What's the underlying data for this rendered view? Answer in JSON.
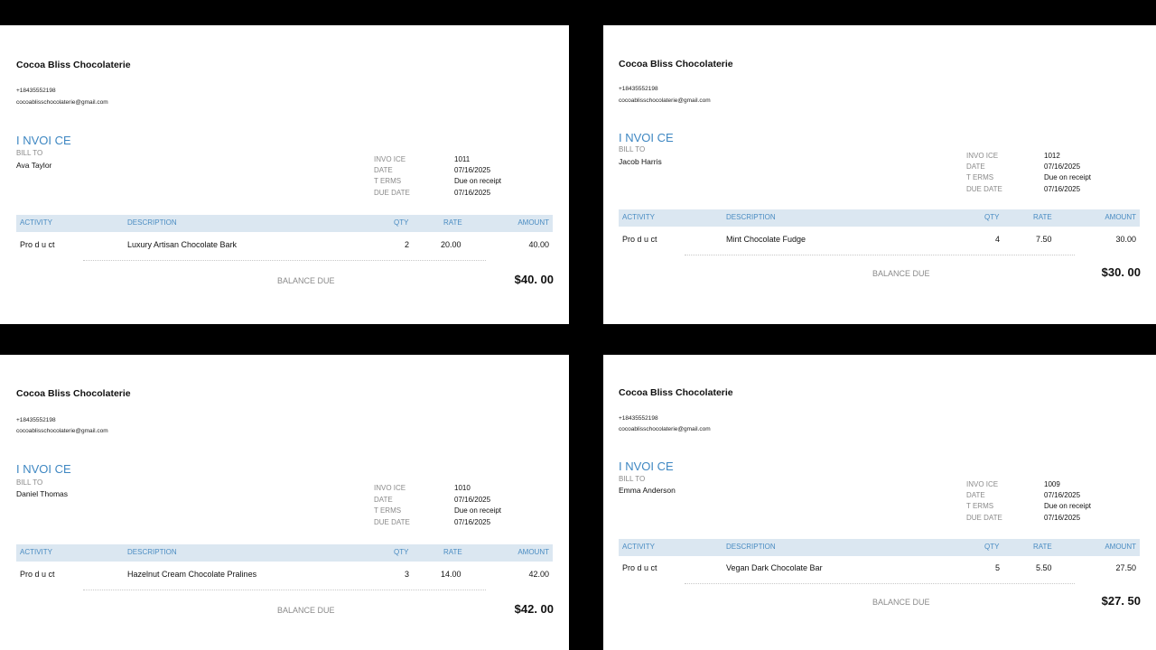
{
  "invoices": [
    {
      "company": "Cocoa Bliss Chocolaterie",
      "phone": "+18435552198",
      "email": "cocoablisschocolaterie@gmail.com",
      "heading": "I NVOI CE",
      "bill_to_label": "BILL TO",
      "bill_to_name": "Ava Taylor",
      "meta_labels": [
        "INVO ICE",
        "DATE",
        "T ERMS",
        "DUE DATE"
      ],
      "meta_values": [
        "1011",
        "07/16/2025",
        "Due on receipt",
        "07/16/2025"
      ],
      "columns": [
        "ACTIVITY",
        "DESCRIPTION",
        "QTY",
        "RATE",
        "AMOUNT"
      ],
      "row": {
        "activity": "Pro d u ct",
        "description": "Luxury Artisan Chocolate Bark",
        "qty": "2",
        "rate": "20.00",
        "amount": "40.00"
      },
      "balance_label": "BALANCE DUE",
      "balance_value": "$40. 00"
    },
    {
      "company": "Cocoa Bliss Chocolaterie",
      "phone": "+18435552198",
      "email": "cocoablisschocolaterie@gmail.com",
      "heading": "I NVOI CE",
      "bill_to_label": "BILL TO",
      "bill_to_name": "Jacob Harris",
      "meta_labels": [
        "INVO ICE",
        "DATE",
        "T ERMS",
        "DUE DATE"
      ],
      "meta_values": [
        "1012",
        "07/16/2025",
        "Due on receipt",
        "07/16/2025"
      ],
      "columns": [
        "ACTIVITY",
        "DESCRIPTION",
        "QTY",
        "RATE",
        "AMOUNT"
      ],
      "row": {
        "activity": "Pro d u ct",
        "description": "Mint Chocolate Fudge",
        "qty": "4",
        "rate": "7.50",
        "amount": "30.00"
      },
      "balance_label": "BALANCE DUE",
      "balance_value": "$30. 00"
    },
    {
      "company": "Cocoa Bliss Chocolaterie",
      "phone": "+18435552198",
      "email": "cocoablisschocolaterie@gmail.com",
      "heading": "I NVOI CE",
      "bill_to_label": "BILL TO",
      "bill_to_name": "Daniel Thomas",
      "meta_labels": [
        "INVO ICE",
        "DATE",
        "T ERMS",
        "DUE DATE"
      ],
      "meta_values": [
        "1010",
        "07/16/2025",
        "Due on receipt",
        "07/16/2025"
      ],
      "columns": [
        "ACTIVITY",
        "DESCRIPTION",
        "QTY",
        "RATE",
        "AMOUNT"
      ],
      "row": {
        "activity": "Pro d u ct",
        "description": "Hazelnut Cream Chocolate Pralines",
        "qty": "3",
        "rate": "14.00",
        "amount": "42.00"
      },
      "balance_label": "BALANCE DUE",
      "balance_value": "$42. 00"
    },
    {
      "company": "Cocoa Bliss Chocolaterie",
      "phone": "+18435552198",
      "email": "cocoablisschocolaterie@gmail.com",
      "heading": "I NVOI CE",
      "bill_to_label": "BILL TO",
      "bill_to_name": "Emma Anderson",
      "meta_labels": [
        "INVO ICE",
        "DATE",
        "T ERMS",
        "DUE DATE"
      ],
      "meta_values": [
        "1009",
        "07/16/2025",
        "Due on receipt",
        "07/16/2025"
      ],
      "columns": [
        "ACTIVITY",
        "DESCRIPTION",
        "QTY",
        "RATE",
        "AMOUNT"
      ],
      "row": {
        "activity": "Pro d u ct",
        "description": "Vegan Dark Chocolate Bar",
        "qty": "5",
        "rate": "5.50",
        "amount": "27.50"
      },
      "balance_label": "BALANCE DUE",
      "balance_value": "$27. 50"
    }
  ]
}
